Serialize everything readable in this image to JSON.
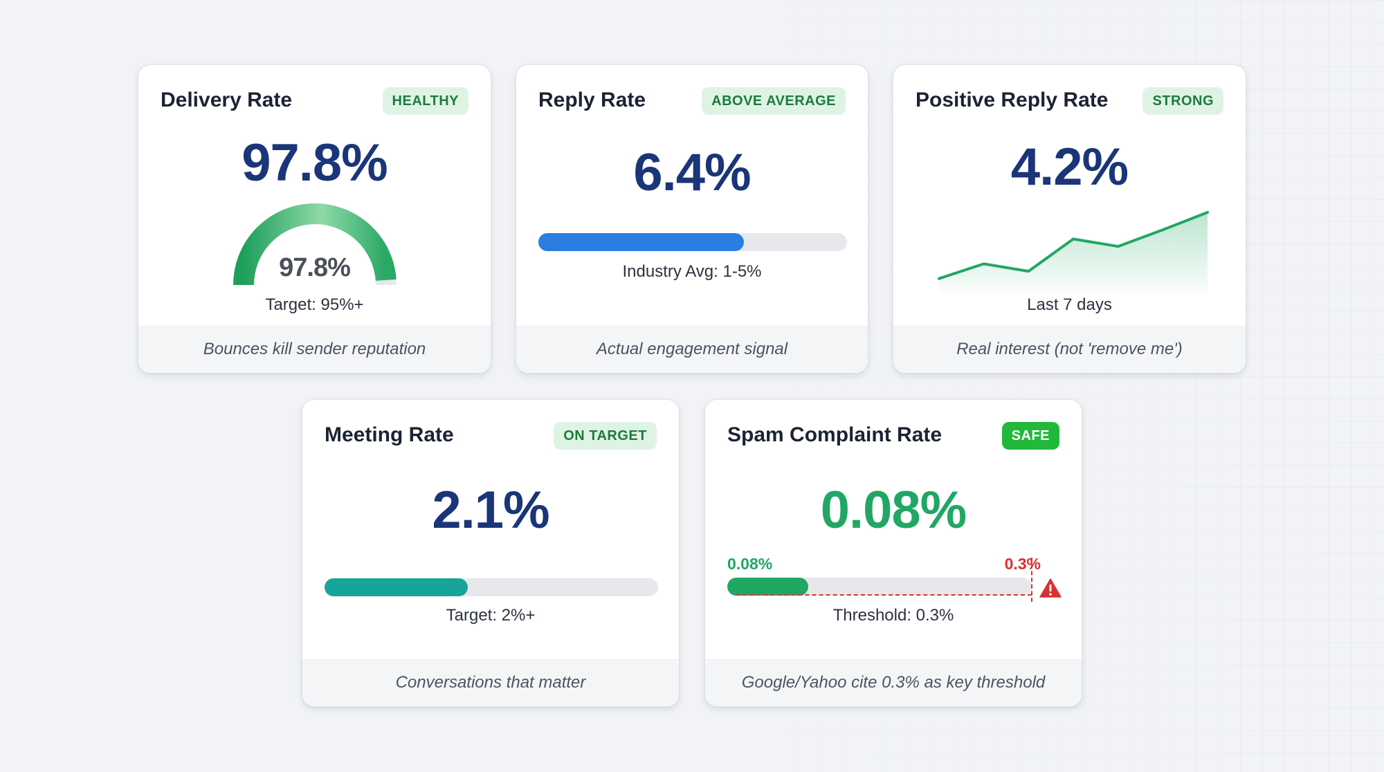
{
  "cards": {
    "delivery": {
      "title": "Delivery Rate",
      "badge": "HEALTHY",
      "value": "97.8%",
      "gauge_value": "97.8%",
      "gauge_percent": 97.8,
      "target": "Target: 95%+",
      "footer": "Bounces kill sender reputation"
    },
    "reply": {
      "title": "Reply Rate",
      "badge": "ABOVE AVERAGE",
      "value": "6.4%",
      "progress_fraction": 0.665,
      "caption": "Industry Avg: 1-5%",
      "footer": "Actual engagement signal"
    },
    "positive": {
      "title": "Positive Reply Rate",
      "badge": "STRONG",
      "value": "4.2%",
      "caption": "Last 7 days",
      "trend": [
        1.0,
        2.6,
        1.8,
        5.3,
        4.5,
        6.3,
        8.2
      ],
      "footer": "Real interest (not 'remove me')"
    },
    "meeting": {
      "title": "Meeting Rate",
      "badge": "ON TARGET",
      "value": "2.1%",
      "progress_fraction": 0.43,
      "target": "Target: 2%+",
      "footer": "Conversations that matter"
    },
    "spam": {
      "title": "Spam Complaint Rate",
      "badge": "SAFE",
      "value": "0.08%",
      "current_label": "0.08%",
      "threshold_label": "0.3%",
      "current": 0.08,
      "threshold": 0.3,
      "threshold_caption": "Threshold: 0.3%",
      "footer": "Google/Yahoo cite 0.3% as key threshold"
    }
  },
  "colors": {
    "navy": "#1a3578",
    "green": "#21a764",
    "blue": "#2a7de1",
    "teal": "#17a59a",
    "red": "#d63232",
    "badge_bg": "#dff3e5",
    "badge_text": "#1e7a3c",
    "safe_badge_bg": "#22b83a"
  },
  "icons": {
    "warning": "warning-triangle-icon"
  }
}
